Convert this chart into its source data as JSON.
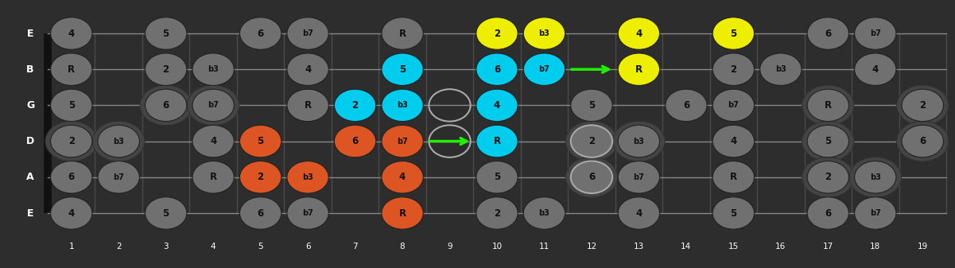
{
  "bg_color": "#2d2d2d",
  "fret_line_color": "#4a4a4a",
  "string_color": "#888888",
  "num_frets": 19,
  "num_strings": 6,
  "string_names": [
    "E",
    "B",
    "G",
    "D",
    "A",
    "E"
  ],
  "gray_fill": "#707070",
  "gray_text": "#111111",
  "cyan_fill": "#00ccee",
  "orange_fill": "#dd5522",
  "yellow_fill": "#eeee00",
  "notes": [
    {
      "string": 0,
      "fret": 1,
      "label": "4",
      "color": "gray"
    },
    {
      "string": 0,
      "fret": 3,
      "label": "5",
      "color": "gray"
    },
    {
      "string": 0,
      "fret": 5,
      "label": "6",
      "color": "gray"
    },
    {
      "string": 0,
      "fret": 6,
      "label": "b7",
      "color": "gray"
    },
    {
      "string": 0,
      "fret": 8,
      "label": "R",
      "color": "gray"
    },
    {
      "string": 0,
      "fret": 10,
      "label": "2",
      "color": "yellow"
    },
    {
      "string": 0,
      "fret": 11,
      "label": "b3",
      "color": "yellow"
    },
    {
      "string": 0,
      "fret": 13,
      "label": "4",
      "color": "yellow"
    },
    {
      "string": 0,
      "fret": 15,
      "label": "5",
      "color": "yellow"
    },
    {
      "string": 0,
      "fret": 17,
      "label": "6",
      "color": "gray"
    },
    {
      "string": 0,
      "fret": 18,
      "label": "b7",
      "color": "gray"
    },
    {
      "string": 1,
      "fret": 1,
      "label": "R",
      "color": "gray"
    },
    {
      "string": 1,
      "fret": 3,
      "label": "2",
      "color": "gray"
    },
    {
      "string": 1,
      "fret": 4,
      "label": "b3",
      "color": "gray"
    },
    {
      "string": 1,
      "fret": 6,
      "label": "4",
      "color": "gray"
    },
    {
      "string": 1,
      "fret": 8,
      "label": "5",
      "color": "cyan"
    },
    {
      "string": 1,
      "fret": 10,
      "label": "6",
      "color": "cyan"
    },
    {
      "string": 1,
      "fret": 11,
      "label": "b7",
      "color": "cyan"
    },
    {
      "string": 1,
      "fret": 13,
      "label": "R",
      "color": "yellow"
    },
    {
      "string": 1,
      "fret": 15,
      "label": "2",
      "color": "gray"
    },
    {
      "string": 1,
      "fret": 16,
      "label": "b3",
      "color": "gray"
    },
    {
      "string": 1,
      "fret": 18,
      "label": "4",
      "color": "gray"
    },
    {
      "string": 2,
      "fret": 1,
      "label": "5",
      "color": "gray"
    },
    {
      "string": 2,
      "fret": 3,
      "label": "6",
      "color": "gray"
    },
    {
      "string": 2,
      "fret": 4,
      "label": "b7",
      "color": "gray"
    },
    {
      "string": 2,
      "fret": 6,
      "label": "R",
      "color": "gray"
    },
    {
      "string": 2,
      "fret": 7,
      "label": "2",
      "color": "cyan"
    },
    {
      "string": 2,
      "fret": 8,
      "label": "b3",
      "color": "cyan"
    },
    {
      "string": 2,
      "fret": 10,
      "label": "4",
      "color": "cyan"
    },
    {
      "string": 2,
      "fret": 12,
      "label": "5",
      "color": "gray"
    },
    {
      "string": 2,
      "fret": 14,
      "label": "6",
      "color": "gray"
    },
    {
      "string": 2,
      "fret": 15,
      "label": "b7",
      "color": "gray"
    },
    {
      "string": 2,
      "fret": 17,
      "label": "R",
      "color": "gray"
    },
    {
      "string": 2,
      "fret": 19,
      "label": "2",
      "color": "gray"
    },
    {
      "string": 3,
      "fret": 1,
      "label": "2",
      "color": "gray"
    },
    {
      "string": 3,
      "fret": 2,
      "label": "b3",
      "color": "gray"
    },
    {
      "string": 3,
      "fret": 4,
      "label": "4",
      "color": "gray"
    },
    {
      "string": 3,
      "fret": 5,
      "label": "5",
      "color": "orange"
    },
    {
      "string": 3,
      "fret": 7,
      "label": "6",
      "color": "orange"
    },
    {
      "string": 3,
      "fret": 8,
      "label": "b7",
      "color": "orange"
    },
    {
      "string": 3,
      "fret": 10,
      "label": "R",
      "color": "cyan"
    },
    {
      "string": 3,
      "fret": 12,
      "label": "2",
      "color": "gray"
    },
    {
      "string": 3,
      "fret": 13,
      "label": "b3",
      "color": "gray"
    },
    {
      "string": 3,
      "fret": 15,
      "label": "4",
      "color": "gray"
    },
    {
      "string": 3,
      "fret": 17,
      "label": "5",
      "color": "gray"
    },
    {
      "string": 3,
      "fret": 19,
      "label": "6",
      "color": "gray"
    },
    {
      "string": 4,
      "fret": 1,
      "label": "6",
      "color": "gray"
    },
    {
      "string": 4,
      "fret": 2,
      "label": "b7",
      "color": "gray"
    },
    {
      "string": 4,
      "fret": 4,
      "label": "R",
      "color": "gray"
    },
    {
      "string": 4,
      "fret": 5,
      "label": "2",
      "color": "orange"
    },
    {
      "string": 4,
      "fret": 6,
      "label": "b3",
      "color": "orange"
    },
    {
      "string": 4,
      "fret": 8,
      "label": "4",
      "color": "orange"
    },
    {
      "string": 4,
      "fret": 10,
      "label": "5",
      "color": "gray"
    },
    {
      "string": 4,
      "fret": 12,
      "label": "6",
      "color": "gray"
    },
    {
      "string": 4,
      "fret": 13,
      "label": "b7",
      "color": "gray"
    },
    {
      "string": 4,
      "fret": 15,
      "label": "R",
      "color": "gray"
    },
    {
      "string": 4,
      "fret": 17,
      "label": "2",
      "color": "gray"
    },
    {
      "string": 4,
      "fret": 18,
      "label": "b3",
      "color": "gray"
    },
    {
      "string": 5,
      "fret": 1,
      "label": "4",
      "color": "gray"
    },
    {
      "string": 5,
      "fret": 3,
      "label": "5",
      "color": "gray"
    },
    {
      "string": 5,
      "fret": 5,
      "label": "6",
      "color": "gray"
    },
    {
      "string": 5,
      "fret": 6,
      "label": "b7",
      "color": "gray"
    },
    {
      "string": 5,
      "fret": 8,
      "label": "R",
      "color": "orange"
    },
    {
      "string": 5,
      "fret": 10,
      "label": "2",
      "color": "gray"
    },
    {
      "string": 5,
      "fret": 11,
      "label": "b3",
      "color": "gray"
    },
    {
      "string": 5,
      "fret": 13,
      "label": "4",
      "color": "gray"
    },
    {
      "string": 5,
      "fret": 15,
      "label": "5",
      "color": "gray"
    },
    {
      "string": 5,
      "fret": 17,
      "label": "6",
      "color": "gray"
    },
    {
      "string": 5,
      "fret": 18,
      "label": "b7",
      "color": "gray"
    }
  ],
  "open_circles": [
    {
      "string": 2,
      "fret": 9
    },
    {
      "string": 3,
      "fret": 9
    },
    {
      "string": 3,
      "fret": 12
    },
    {
      "string": 4,
      "fret": 12
    }
  ],
  "ghost_doubles": [
    {
      "string": 2,
      "fret": 3
    },
    {
      "string": 2,
      "fret": 4
    },
    {
      "string": 3,
      "fret": 1
    },
    {
      "string": 3,
      "fret": 2
    },
    {
      "string": 3,
      "fret": 12
    },
    {
      "string": 3,
      "fret": 13
    },
    {
      "string": 3,
      "fret": 17
    },
    {
      "string": 3,
      "fret": 19
    },
    {
      "string": 4,
      "fret": 12
    },
    {
      "string": 4,
      "fret": 17
    },
    {
      "string": 4,
      "fret": 18
    },
    {
      "string": 2,
      "fret": 17
    },
    {
      "string": 2,
      "fret": 19
    }
  ],
  "arrows": [
    {
      "string": 3,
      "fret_from": 8,
      "fret_to": 10
    },
    {
      "string": 1,
      "fret_from": 11,
      "fret_to": 13
    }
  ]
}
